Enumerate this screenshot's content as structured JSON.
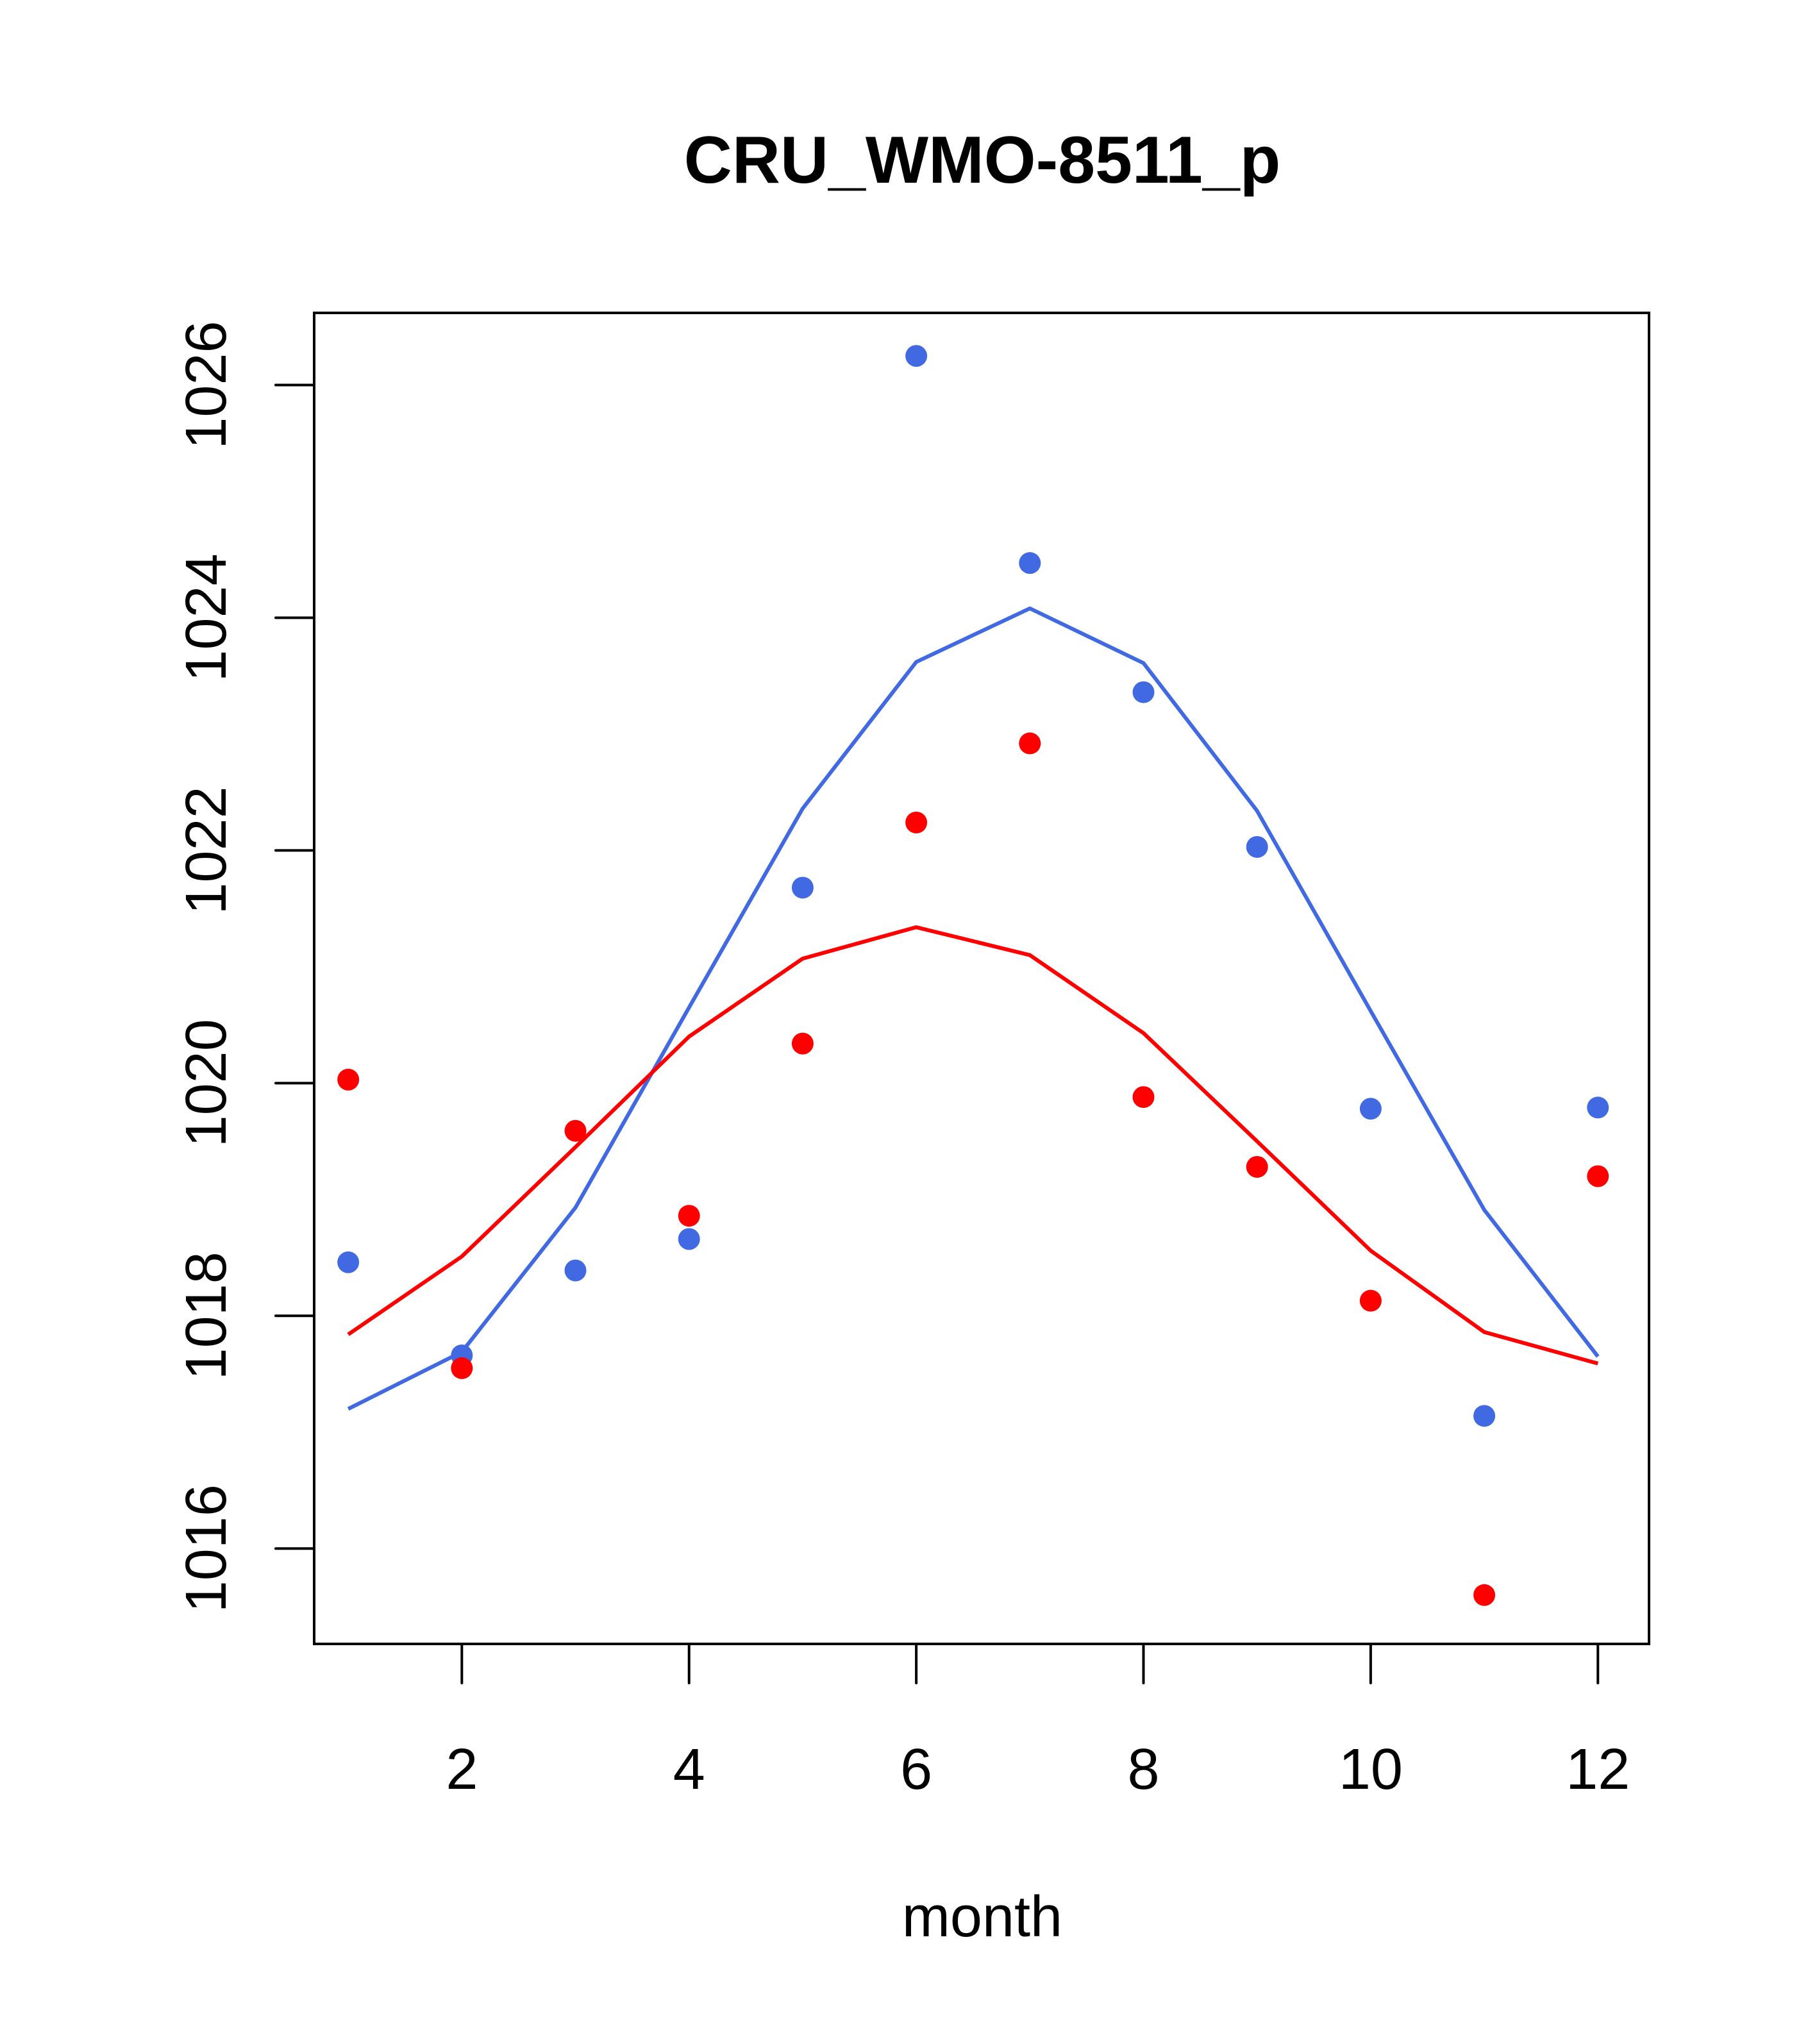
{
  "chart_data": {
    "type": "line",
    "title": "CRU_WMO-8511_p",
    "xlabel": "month",
    "ylabel": "",
    "xlim": [
      0.7,
      12.45
    ],
    "ylim": [
      1015.18,
      1026.62
    ],
    "xticks": [
      2,
      4,
      6,
      8,
      10,
      12
    ],
    "yticks": [
      1016,
      1018,
      1020,
      1022,
      1024,
      1026
    ],
    "grid": false,
    "legend": null,
    "x": [
      1,
      2,
      3,
      4,
      5,
      6,
      7,
      8,
      9,
      10,
      11,
      12
    ],
    "series": [
      {
        "name": "blue points",
        "kind": "points",
        "color": "#4169E1",
        "values": [
          1018.46,
          1017.66,
          1018.39,
          1018.66,
          1021.68,
          1026.25,
          1024.47,
          1023.36,
          1022.03,
          1019.78,
          1017.14,
          1019.79
        ]
      },
      {
        "name": "red points",
        "kind": "points",
        "color": "#FF0000",
        "values": [
          1020.03,
          1017.55,
          1019.59,
          1018.86,
          1020.34,
          1022.24,
          1022.92,
          1019.88,
          1019.28,
          1018.13,
          1015.6,
          1019.2
        ]
      },
      {
        "name": "blue line",
        "kind": "line",
        "color": "#4169E1",
        "values": [
          1017.2,
          1017.69,
          1018.93,
          1020.65,
          1022.36,
          1023.62,
          1024.08,
          1023.61,
          1022.34,
          1020.62,
          1018.91,
          1017.65
        ]
      },
      {
        "name": "red line",
        "kind": "line",
        "color": "#FF0000",
        "values": [
          1017.84,
          1018.51,
          1019.45,
          1020.4,
          1021.07,
          1021.34,
          1021.1,
          1020.43,
          1019.5,
          1018.56,
          1017.86,
          1017.59
        ]
      }
    ]
  }
}
